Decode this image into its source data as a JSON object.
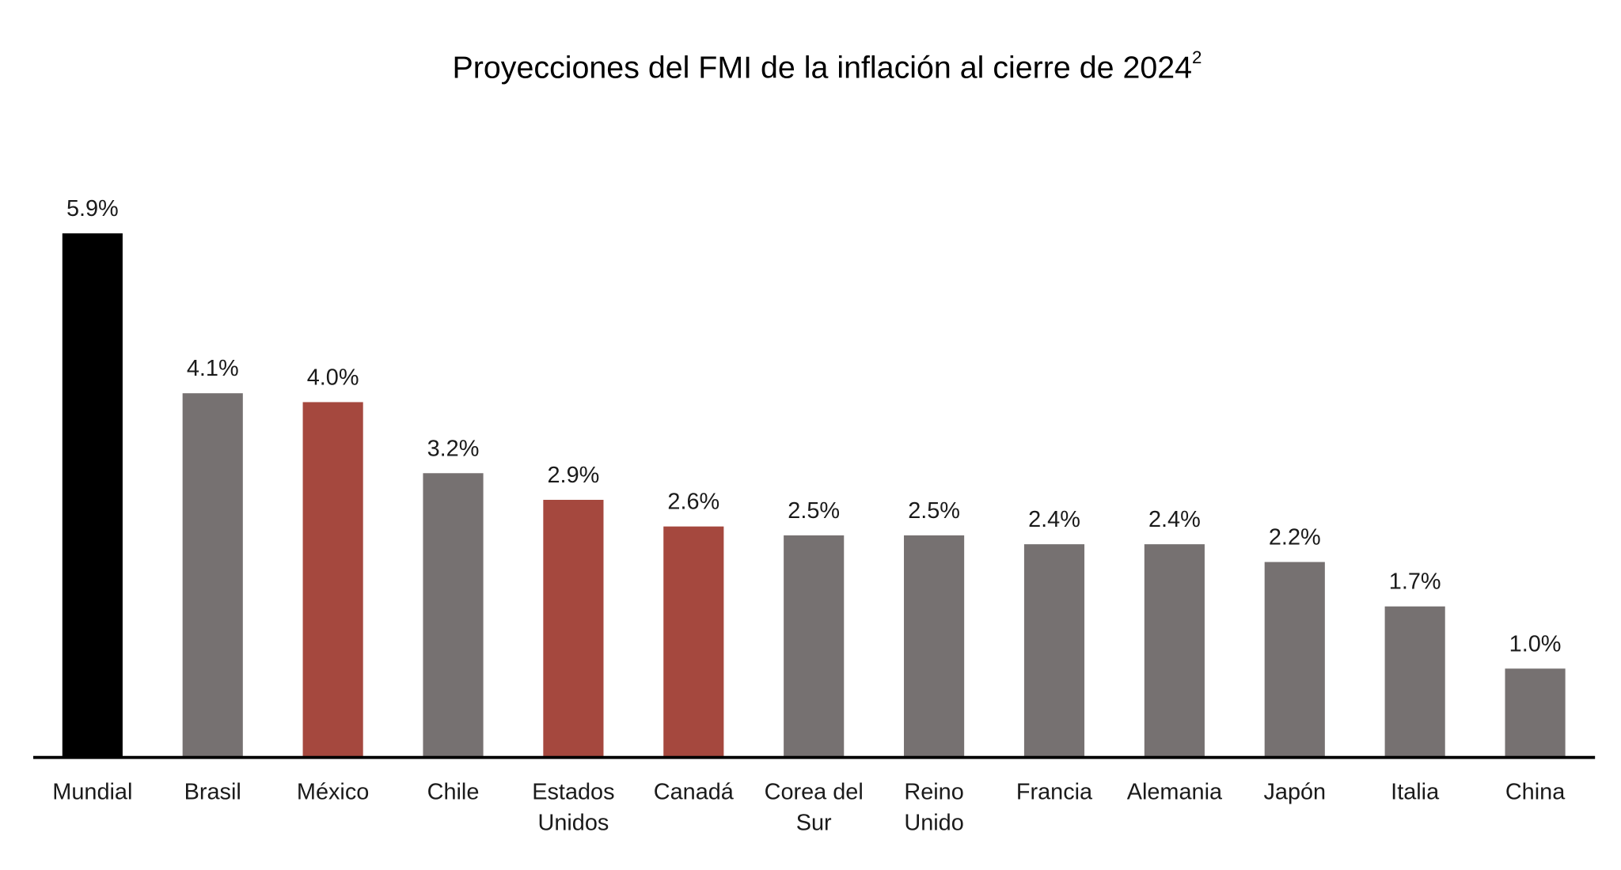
{
  "chart_data": {
    "type": "bar",
    "title": "Proyecciones del FMI de la inflación al cierre de 2024",
    "title_superscript": "2",
    "xlabel": "",
    "ylabel": "",
    "ylim": [
      0,
      5.9
    ],
    "grid": false,
    "legend": "none",
    "categories": [
      [
        "Mundial"
      ],
      [
        "Brasil"
      ],
      [
        "México"
      ],
      [
        "Chile"
      ],
      [
        "Estados",
        "Unidos"
      ],
      [
        "Canadá"
      ],
      [
        "Corea del",
        "Sur"
      ],
      [
        "Reino",
        "Unido"
      ],
      [
        "Francia"
      ],
      [
        "Alemania"
      ],
      [
        "Japón"
      ],
      [
        "Italia"
      ],
      [
        "China"
      ]
    ],
    "values": [
      5.9,
      4.1,
      4.0,
      3.2,
      2.9,
      2.6,
      2.5,
      2.5,
      2.4,
      2.4,
      2.2,
      1.7,
      1.0
    ],
    "data_labels": [
      "5.9%",
      "4.1%",
      "4.0%",
      "3.2%",
      "2.9%",
      "2.6%",
      "2.5%",
      "2.5%",
      "2.4%",
      "2.4%",
      "2.2%",
      "1.7%",
      "1.0%"
    ],
    "bar_colors": [
      "#000000",
      "#767171",
      "#A5483E",
      "#767171",
      "#A5483E",
      "#A5483E",
      "#767171",
      "#767171",
      "#767171",
      "#767171",
      "#767171",
      "#767171",
      "#767171"
    ],
    "axis_color": "#000000"
  }
}
